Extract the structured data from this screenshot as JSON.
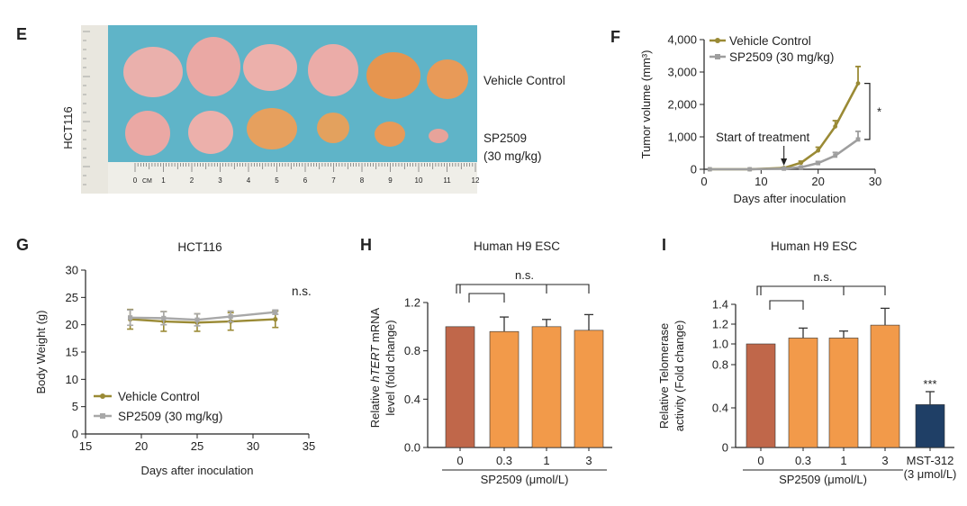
{
  "panel_E": {
    "letter": "E",
    "cell_line": "HCT116",
    "label_vehicle": "Vehicle Control",
    "label_sp_1": "SP2509",
    "label_sp_2": "(30 mg/kg)",
    "ruler_unit": "CM",
    "ruler_numbers": [
      "0",
      "1",
      "2",
      "3",
      "4",
      "5",
      "6",
      "7",
      "8",
      "9",
      "10",
      "11",
      "12"
    ],
    "colors": {
      "background": "#5fb4c8",
      "tumor_vehicle": "#e8a6a2",
      "tumor_treated": "#e49a5c"
    }
  },
  "panel_F": {
    "letter": "F"
  },
  "panel_G": {
    "letter": "G"
  },
  "panel_H": {
    "letter": "H"
  },
  "panel_I": {
    "letter": "I"
  },
  "chart_data": [
    {
      "panel": "F",
      "type": "line",
      "ylabel": "Tumor volume (mm³)",
      "xlabel": "Days after inoculation",
      "xlim": [
        0,
        30
      ],
      "ylim": [
        0,
        4000
      ],
      "xticks": [
        0,
        10,
        20,
        30
      ],
      "yticks": [
        0,
        1000,
        2000,
        3000,
        4000
      ],
      "ytick_labels": [
        "0",
        "1,000",
        "2,000",
        "3,000",
        "4,000"
      ],
      "annotation": "Start of treatment",
      "annotation_x": 14,
      "significance": "*",
      "series": [
        {
          "name": "Vehicle Control",
          "color": "#9a8a35",
          "x": [
            1,
            8,
            14,
            17,
            20,
            23,
            27
          ],
          "y": [
            0,
            0,
            40,
            200,
            580,
            1320,
            2650
          ],
          "err": [
            0,
            0,
            20,
            50,
            100,
            180,
            520
          ]
        },
        {
          "name": "SP2509 (30 mg/kg)",
          "color": "#9e9e9e",
          "x": [
            1,
            8,
            14,
            17,
            20,
            23,
            27
          ],
          "y": [
            0,
            0,
            20,
            60,
            190,
            420,
            920
          ],
          "err": [
            0,
            0,
            10,
            25,
            50,
            100,
            250
          ]
        }
      ]
    },
    {
      "panel": "G",
      "type": "line",
      "title": "HCT116",
      "ylabel": "Body Weight (g)",
      "xlabel": "Days after inoculation",
      "xlim": [
        15,
        35
      ],
      "ylim": [
        0,
        30
      ],
      "xticks": [
        15,
        20,
        25,
        30,
        35
      ],
      "yticks": [
        0,
        5,
        10,
        15,
        20,
        25,
        30
      ],
      "significance": "n.s.",
      "series": [
        {
          "name": "Vehicle Control",
          "color": "#9a8a35",
          "x": [
            19,
            22,
            25,
            28,
            32
          ],
          "y": [
            21.0,
            20.6,
            20.4,
            20.6,
            21.0
          ],
          "err": [
            1.8,
            1.8,
            1.6,
            1.6,
            1.5
          ]
        },
        {
          "name": "SP2509 (30 mg/kg)",
          "color": "#a8a8a8",
          "x": [
            19,
            22,
            25,
            28,
            32
          ],
          "y": [
            21.3,
            21.2,
            20.9,
            21.5,
            22.3
          ],
          "err": [
            1.4,
            1.2,
            1.1,
            1.0,
            0.4
          ]
        }
      ]
    },
    {
      "panel": "H",
      "type": "bar",
      "title": "Human H9 ESC",
      "ylabel_parts": [
        "Relative ",
        "hTERT",
        " mRNA",
        "level (fold change)"
      ],
      "categories": [
        "0",
        "0.3",
        "1",
        "3"
      ],
      "group_label": "SP2509 (μmol/L)",
      "values": [
        1.0,
        0.96,
        1.0,
        0.97
      ],
      "err": [
        0,
        0.12,
        0.06,
        0.13
      ],
      "ylim": [
        0,
        1.2
      ],
      "yticks": [
        0.0,
        0.4,
        0.8,
        1.2
      ],
      "ytick_labels": [
        "0.0",
        "0.4",
        "0.8",
        "1.2"
      ],
      "bar_colors": [
        "#c0674a",
        "#f29a4a",
        "#f29a4a",
        "#f29a4a"
      ],
      "significance": "n.s."
    },
    {
      "panel": "I",
      "type": "bar",
      "title": "Human H9 ESC",
      "ylabel_parts": [
        "Relative Telomerase",
        "activity (Fold change)"
      ],
      "categories": [
        "0",
        "0.3",
        "1",
        "3",
        "MST-312"
      ],
      "extra_label": "(3 μmol/L)",
      "group_label": "SP2509 (μmol/L)",
      "values": [
        1.0,
        1.06,
        1.06,
        1.19,
        0.43
      ],
      "err": [
        0,
        0.1,
        0.07,
        0.17,
        0.12
      ],
      "yticks": [
        0,
        0.4,
        0.8,
        1.0,
        1.2,
        1.4
      ],
      "ytick_labels": [
        "0",
        "0.4",
        "0.8",
        "1.0",
        "1.2",
        "1.4"
      ],
      "bar_colors": [
        "#c0674a",
        "#f29a4a",
        "#f29a4a",
        "#f29a4a",
        "#1f3f66"
      ],
      "significance": "n.s.",
      "extra_significance": "***"
    }
  ]
}
